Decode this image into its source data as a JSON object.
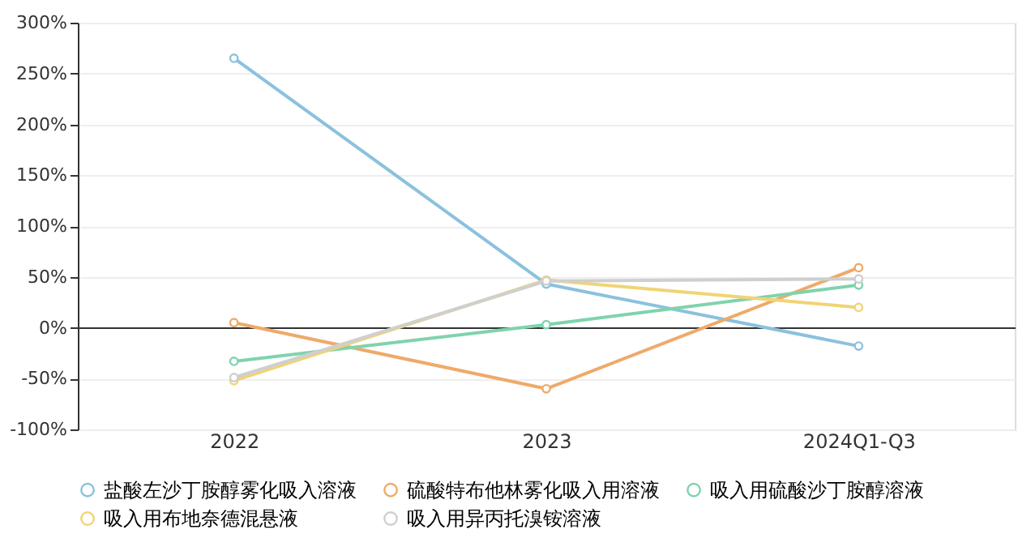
{
  "chart_data": {
    "type": "line",
    "categories": [
      "2022",
      "2023",
      "2024Q1-Q3"
    ],
    "series": [
      {
        "name": "盐酸左沙丁胺醇雾化吸入溶液",
        "color": "#8bc1dd",
        "values": [
          265,
          43,
          -18
        ]
      },
      {
        "name": "硫酸特布他林雾化吸入用溶液",
        "color": "#eeaa6a",
        "values": [
          5,
          -60,
          59
        ]
      },
      {
        "name": "吸入用硫酸沙丁胺醇溶液",
        "color": "#7fd3ad",
        "values": [
          -33,
          3,
          42
        ]
      },
      {
        "name": "吸入用布地奈德混悬液",
        "color": "#f0d475",
        "values": [
          -52,
          47,
          20
        ]
      },
      {
        "name": "吸入用异丙托溴铵溶液",
        "color": "#cfcfcf",
        "values": [
          -49,
          46,
          48
        ]
      }
    ],
    "ylim": [
      -100,
      300
    ],
    "yticks": [
      {
        "value": -100,
        "label": "-100%"
      },
      {
        "value": -50,
        "label": "-50%"
      },
      {
        "value": 0,
        "label": "0%"
      },
      {
        "value": 50,
        "label": "50%"
      },
      {
        "value": 100,
        "label": "100%"
      },
      {
        "value": 150,
        "label": "150%"
      },
      {
        "value": 200,
        "label": "200%"
      },
      {
        "value": 250,
        "label": "250%"
      },
      {
        "value": 300,
        "label": "300%"
      }
    ],
    "grid": "y",
    "legend": "bottom",
    "marker": "circle",
    "line_style": "solid"
  }
}
